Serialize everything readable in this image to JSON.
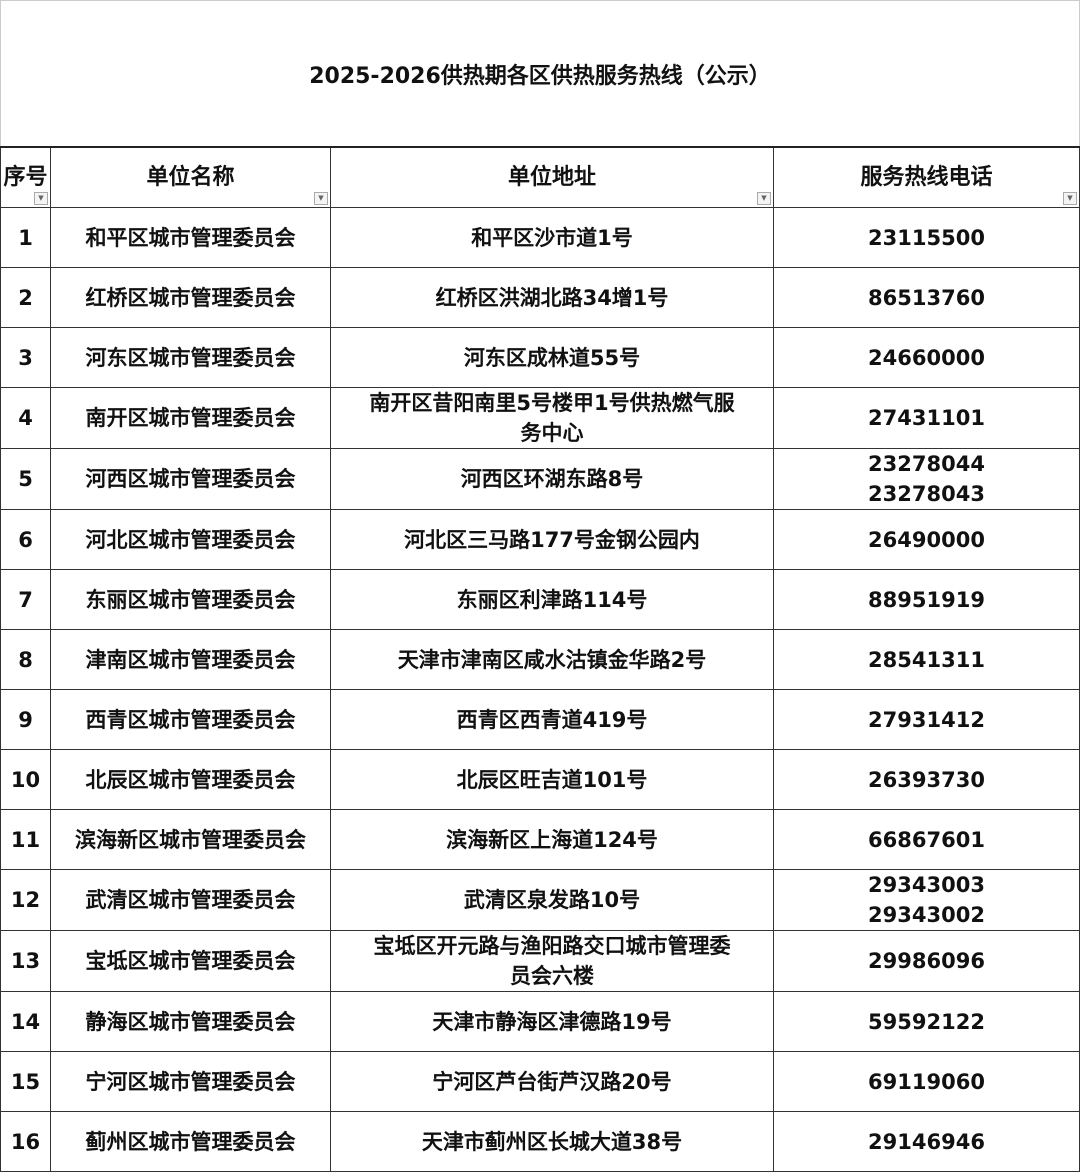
{
  "title": "2025-2026供热期各区供热服务热线（公示）",
  "columns": [
    "序号",
    "单位名称",
    "单位地址",
    "服务热线电话"
  ],
  "filter_icon": "dropdown-filter-icon",
  "rows": [
    {
      "no": "1",
      "name": "和平区城市管理委员会",
      "address": "和平区沙市道1号",
      "phone": "23115500"
    },
    {
      "no": "2",
      "name": "红桥区城市管理委员会",
      "address": "红桥区洪湖北路34增1号",
      "phone": "86513760"
    },
    {
      "no": "3",
      "name": "河东区城市管理委员会",
      "address": "河东区成林道55号",
      "phone": "24660000"
    },
    {
      "no": "4",
      "name": "南开区城市管理委员会",
      "address": "南开区昔阳南里5号楼甲1号供热燃气服\n务中心",
      "phone": "27431101"
    },
    {
      "no": "5",
      "name": "河西区城市管理委员会",
      "address": "河西区环湖东路8号",
      "phone": "23278044\n23278043"
    },
    {
      "no": "6",
      "name": "河北区城市管理委员会",
      "address": "河北区三马路177号金钢公园内",
      "phone": "26490000"
    },
    {
      "no": "7",
      "name": "东丽区城市管理委员会",
      "address": "东丽区利津路114号",
      "phone": "88951919"
    },
    {
      "no": "8",
      "name": "津南区城市管理委员会",
      "address": "天津市津南区咸水沽镇金华路2号",
      "phone": "28541311"
    },
    {
      "no": "9",
      "name": "西青区城市管理委员会",
      "address": "西青区西青道419号",
      "phone": "27931412"
    },
    {
      "no": "10",
      "name": "北辰区城市管理委员会",
      "address": "北辰区旺吉道101号",
      "phone": "26393730"
    },
    {
      "no": "11",
      "name": "滨海新区城市管理委员会",
      "address": "滨海新区上海道124号",
      "phone": "66867601"
    },
    {
      "no": "12",
      "name": "武清区城市管理委员会",
      "address": "武清区泉发路10号",
      "phone": "29343003\n29343002"
    },
    {
      "no": "13",
      "name": "宝坻区城市管理委员会",
      "address": "宝坻区开元路与渔阳路交口城市管理委\n员会六楼",
      "phone": "29986096"
    },
    {
      "no": "14",
      "name": "静海区城市管理委员会",
      "address": "天津市静海区津德路19号",
      "phone": "59592122"
    },
    {
      "no": "15",
      "name": "宁河区城市管理委员会",
      "address": "宁河区芦台街芦汉路20号",
      "phone": "69119060"
    },
    {
      "no": "16",
      "name": "蓟州区城市管理委员会",
      "address": "天津市蓟州区长城大道38号",
      "phone": "29146946"
    }
  ]
}
